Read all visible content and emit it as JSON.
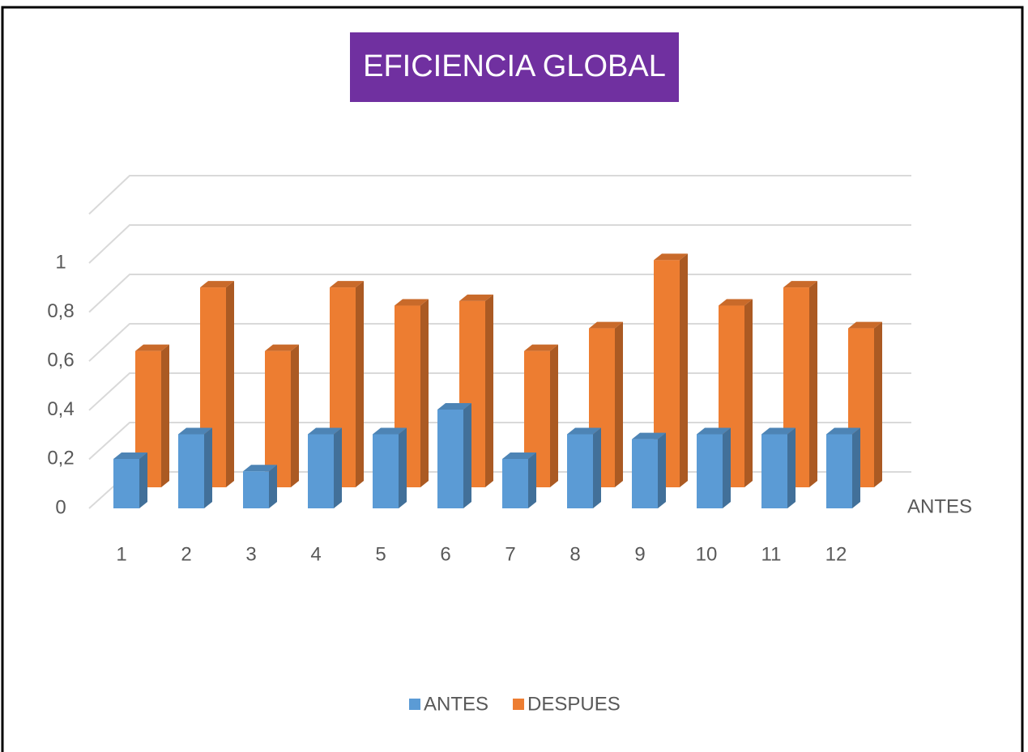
{
  "chart_data": {
    "type": "bar",
    "title": "EFICIENCIA GLOBAL",
    "categories": [
      "1",
      "2",
      "3",
      "4",
      "5",
      "6",
      "7",
      "8",
      "9",
      "10",
      "11",
      "12"
    ],
    "series": [
      {
        "name": "ANTES",
        "color": "#5b9bd5",
        "values": [
          0.2,
          0.3,
          0.15,
          0.3,
          0.3,
          0.4,
          0.2,
          0.3,
          0.28,
          0.3,
          0.3,
          0.3
        ]
      },
      {
        "name": "DESPUES",
        "color": "#ed7d31",
        "values": [
          0.6,
          0.88,
          0.6,
          0.88,
          0.8,
          0.82,
          0.6,
          0.7,
          1.0,
          0.8,
          0.88,
          0.7
        ]
      }
    ],
    "depth_axis_label": "ANTES",
    "ylim": [
      0,
      1.2
    ],
    "yticks": [
      0,
      {
        "value": 0.2,
        "label": "0,2"
      },
      {
        "value": 0.4,
        "label": "0,4"
      },
      {
        "value": 0.6,
        "label": "0,6"
      },
      {
        "value": 0.8,
        "label": "0,8"
      },
      1
    ],
    "grid": true,
    "legend": "bottom"
  }
}
